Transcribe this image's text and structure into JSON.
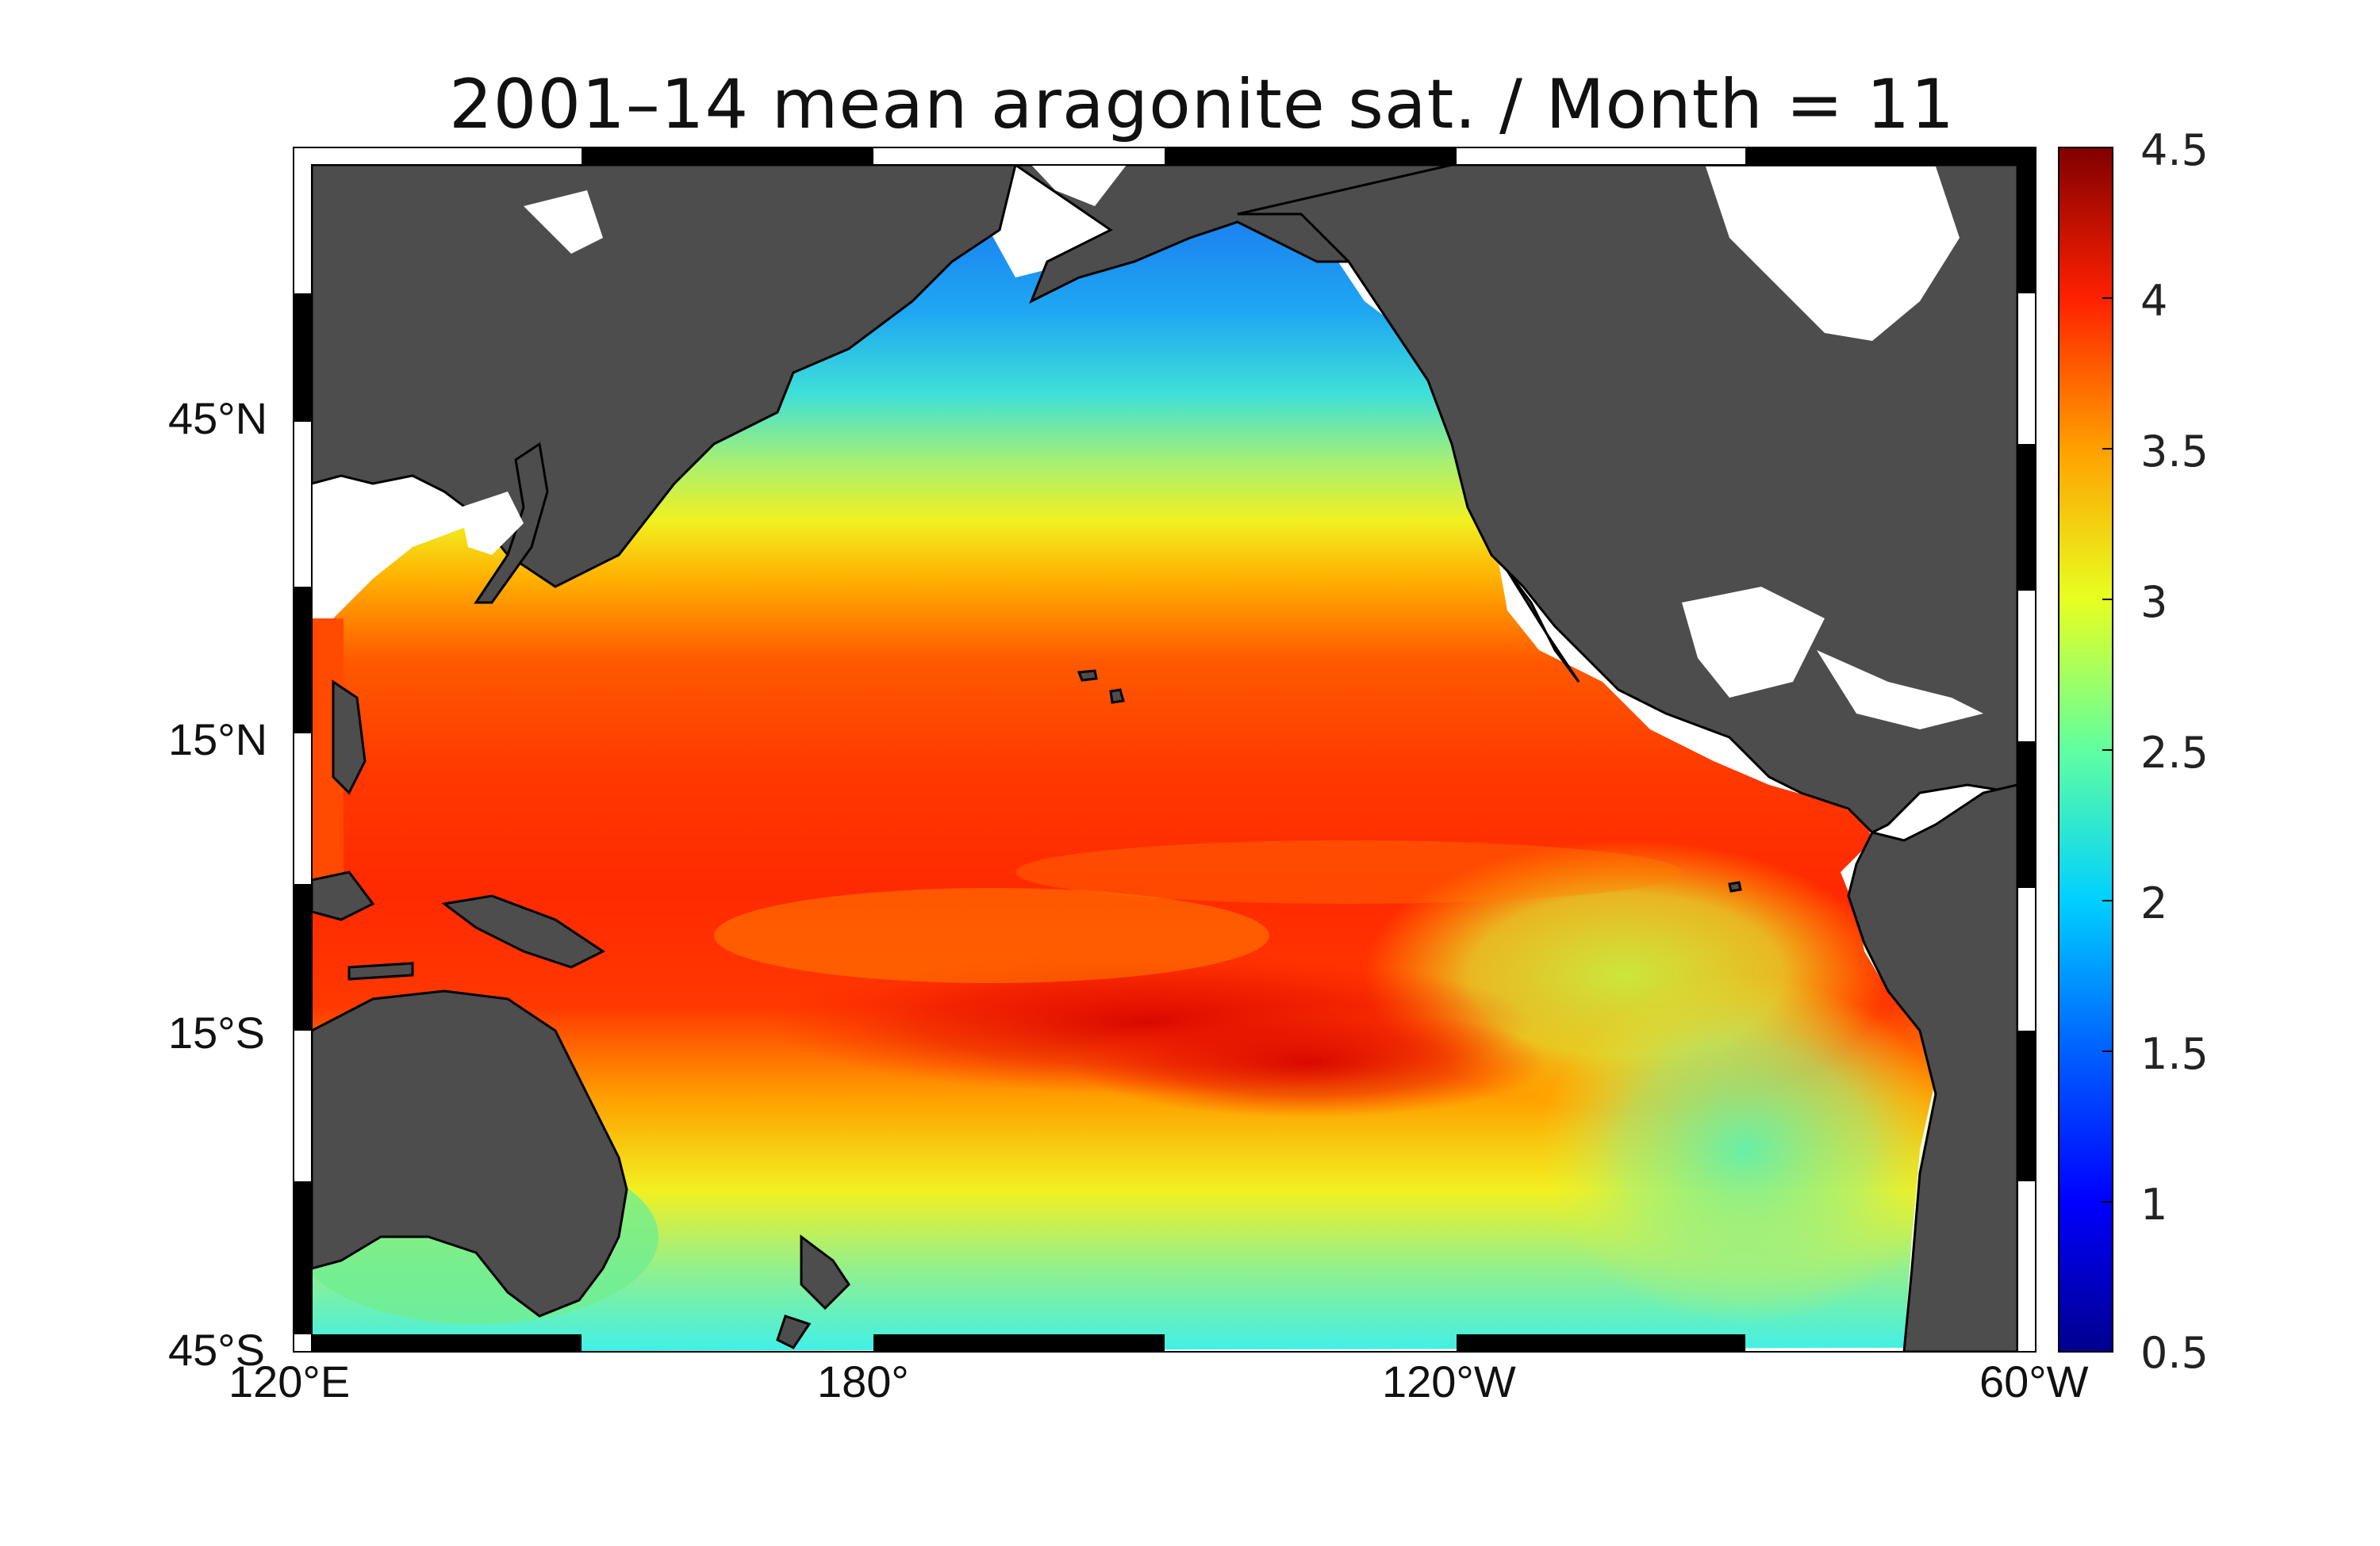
{
  "title": "2001–14 mean aragonite sat. / Month = 11",
  "lat_labels": [
    "45°N",
    "15°N",
    "15°S",
    "45°S"
  ],
  "lon_labels": [
    "120°E",
    "180°",
    "120°W",
    "60°W"
  ],
  "colorbar": {
    "min": 0.5,
    "max": 4.5,
    "ticks": [
      "4.5",
      "4",
      "3.5",
      "3",
      "2.5",
      "2",
      "1.5",
      "1",
      "0.5"
    ],
    "colormap": [
      "#00008f",
      "#0000ff",
      "#0080ff",
      "#00ffff",
      "#80ff80",
      "#ffff00",
      "#ff8000",
      "#ff0000",
      "#800000"
    ]
  },
  "colors": {
    "land": "#4d4d4d",
    "no_data": "#ffffff",
    "frame": "#000000"
  }
}
